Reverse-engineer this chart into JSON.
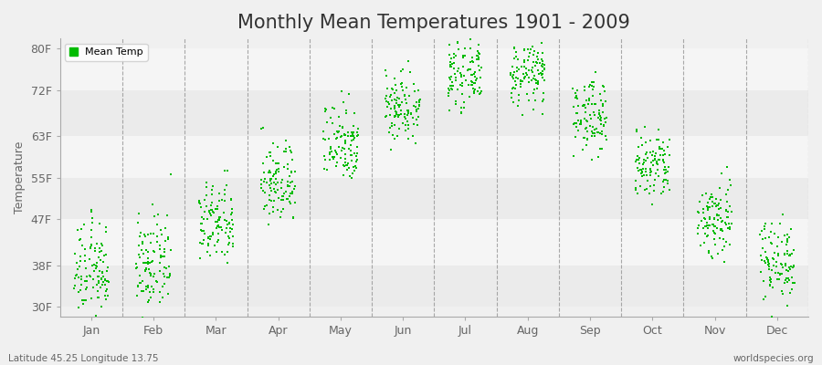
{
  "title": "Monthly Mean Temperatures 1901 - 2009",
  "ylabel": "Temperature",
  "xlabel_labels": [
    "Jan",
    "Feb",
    "Mar",
    "Apr",
    "May",
    "Jun",
    "Jul",
    "Aug",
    "Sep",
    "Oct",
    "Nov",
    "Dec"
  ],
  "ytick_labels": [
    "30F",
    "38F",
    "47F",
    "55F",
    "63F",
    "72F",
    "80F"
  ],
  "ytick_values": [
    30,
    38,
    47,
    55,
    63,
    72,
    80
  ],
  "ylim": [
    28,
    82
  ],
  "dot_color": "#00bb00",
  "legend_label": "Mean Temp",
  "footer_left": "Latitude 45.25 Longitude 13.75",
  "footer_right": "worldspecies.org",
  "title_fontsize": 15,
  "axis_label_fontsize": 9,
  "tick_fontsize": 9,
  "dot_size": 4,
  "monthly_mean_F": [
    37,
    38,
    46,
    54,
    62,
    69,
    75,
    75,
    67,
    57,
    47,
    39
  ],
  "monthly_std_F": [
    4.5,
    4.5,
    4.0,
    4.0,
    4.0,
    3.5,
    3.0,
    3.0,
    3.5,
    3.5,
    4.0,
    4.0
  ],
  "n_years": 109,
  "band_colors": [
    "#ebebeb",
    "#f5f5f5",
    "#ebebeb",
    "#f5f5f5",
    "#ebebeb",
    "#f5f5f5"
  ],
  "bg_color": "#f0f0f0",
  "dashed_color": "#888888"
}
